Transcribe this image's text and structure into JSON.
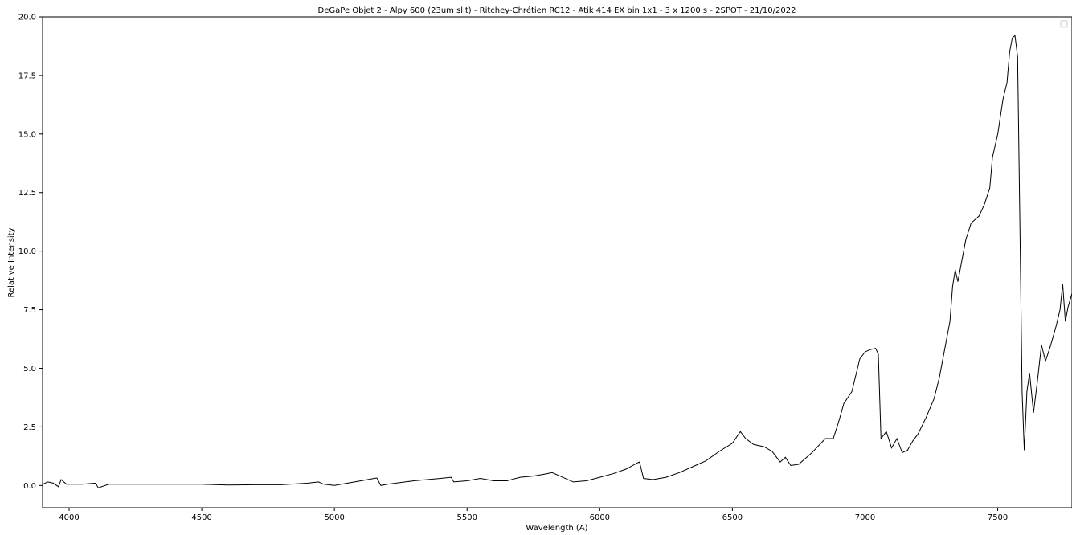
{
  "chart_data": {
    "type": "line",
    "title": "DeGaPe Objet 2 - Alpy 600 (23um slit) - Ritchey-Chrétien RC12 - Atik 414 EX bin 1x1 - 3 x 1200 s - 2SPOT - 21/10/2022",
    "xlabel": "Wavelength (A)",
    "ylabel": "Relative Intensity",
    "xlim": [
      3900,
      7780
    ],
    "ylim": [
      -0.95,
      20.0
    ],
    "x_ticks": [
      4000,
      4500,
      5000,
      5500,
      6000,
      6500,
      7000,
      7500
    ],
    "y_ticks": [
      0.0,
      2.5,
      5.0,
      7.5,
      10.0,
      12.5,
      15.0,
      17.5,
      20.0
    ],
    "x_tick_labels": [
      "4000",
      "4500",
      "5000",
      "5500",
      "6000",
      "6500",
      "7000",
      "7500"
    ],
    "y_tick_labels": [
      "0.0",
      "2.5",
      "5.0",
      "7.5",
      "10.0",
      "12.5",
      "15.0",
      "17.5",
      "20.0"
    ],
    "legend_position": "top-right",
    "grid": false,
    "series": [
      {
        "color": "#000000",
        "points": [
          [
            3900,
            0.05
          ],
          [
            3920,
            0.15
          ],
          [
            3940,
            0.1
          ],
          [
            3960,
            -0.05
          ],
          [
            3970,
            0.25
          ],
          [
            3990,
            0.05
          ],
          [
            4050,
            0.05
          ],
          [
            4100,
            0.1
          ],
          [
            4110,
            -0.1
          ],
          [
            4150,
            0.05
          ],
          [
            4200,
            0.05
          ],
          [
            4300,
            0.05
          ],
          [
            4400,
            0.05
          ],
          [
            4500,
            0.05
          ],
          [
            4600,
            0.02
          ],
          [
            4700,
            0.03
          ],
          [
            4800,
            0.03
          ],
          [
            4900,
            0.1
          ],
          [
            4940,
            0.15
          ],
          [
            4960,
            0.05
          ],
          [
            5000,
            0.0
          ],
          [
            5050,
            0.1
          ],
          [
            5100,
            0.2
          ],
          [
            5150,
            0.3
          ],
          [
            5160,
            0.32
          ],
          [
            5175,
            0.0
          ],
          [
            5200,
            0.05
          ],
          [
            5300,
            0.2
          ],
          [
            5400,
            0.3
          ],
          [
            5440,
            0.35
          ],
          [
            5450,
            0.15
          ],
          [
            5500,
            0.2
          ],
          [
            5550,
            0.3
          ],
          [
            5600,
            0.2
          ],
          [
            5650,
            0.2
          ],
          [
            5700,
            0.35
          ],
          [
            5750,
            0.4
          ],
          [
            5800,
            0.5
          ],
          [
            5820,
            0.55
          ],
          [
            5850,
            0.4
          ],
          [
            5900,
            0.15
          ],
          [
            5950,
            0.2
          ],
          [
            6000,
            0.35
          ],
          [
            6050,
            0.5
          ],
          [
            6100,
            0.7
          ],
          [
            6140,
            0.95
          ],
          [
            6150,
            1.0
          ],
          [
            6165,
            0.3
          ],
          [
            6200,
            0.25
          ],
          [
            6250,
            0.35
          ],
          [
            6300,
            0.55
          ],
          [
            6350,
            0.8
          ],
          [
            6400,
            1.05
          ],
          [
            6450,
            1.45
          ],
          [
            6500,
            1.8
          ],
          [
            6530,
            2.3
          ],
          [
            6550,
            2.0
          ],
          [
            6580,
            1.75
          ],
          [
            6620,
            1.65
          ],
          [
            6650,
            1.45
          ],
          [
            6680,
            1.0
          ],
          [
            6700,
            1.2
          ],
          [
            6720,
            0.85
          ],
          [
            6750,
            0.9
          ],
          [
            6800,
            1.4
          ],
          [
            6850,
            2.0
          ],
          [
            6880,
            2.0
          ],
          [
            6900,
            2.7
          ],
          [
            6920,
            3.5
          ],
          [
            6950,
            4.0
          ],
          [
            6980,
            5.4
          ],
          [
            7000,
            5.7
          ],
          [
            7020,
            5.8
          ],
          [
            7040,
            5.85
          ],
          [
            7050,
            5.6
          ],
          [
            7060,
            2.0
          ],
          [
            7080,
            2.3
          ],
          [
            7100,
            1.6
          ],
          [
            7120,
            2.0
          ],
          [
            7140,
            1.4
          ],
          [
            7160,
            1.5
          ],
          [
            7180,
            1.9
          ],
          [
            7200,
            2.2
          ],
          [
            7230,
            2.9
          ],
          [
            7260,
            3.7
          ],
          [
            7280,
            4.6
          ],
          [
            7300,
            5.8
          ],
          [
            7320,
            7.0
          ],
          [
            7330,
            8.5
          ],
          [
            7340,
            9.2
          ],
          [
            7350,
            8.7
          ],
          [
            7360,
            9.3
          ],
          [
            7380,
            10.5
          ],
          [
            7400,
            11.2
          ],
          [
            7430,
            11.5
          ],
          [
            7450,
            12.0
          ],
          [
            7470,
            12.7
          ],
          [
            7480,
            14.0
          ],
          [
            7500,
            15.0
          ],
          [
            7520,
            16.5
          ],
          [
            7535,
            17.2
          ],
          [
            7545,
            18.5
          ],
          [
            7555,
            19.1
          ],
          [
            7565,
            19.2
          ],
          [
            7575,
            18.3
          ],
          [
            7585,
            10.0
          ],
          [
            7592,
            4.0
          ],
          [
            7600,
            1.5
          ],
          [
            7610,
            4.0
          ],
          [
            7620,
            4.8
          ],
          [
            7635,
            3.1
          ],
          [
            7650,
            4.5
          ],
          [
            7665,
            6.0
          ],
          [
            7680,
            5.3
          ],
          [
            7700,
            6.0
          ],
          [
            7720,
            6.8
          ],
          [
            7735,
            7.5
          ],
          [
            7745,
            8.6
          ],
          [
            7755,
            7.0
          ],
          [
            7765,
            7.6
          ],
          [
            7780,
            8.2
          ]
        ]
      }
    ]
  }
}
